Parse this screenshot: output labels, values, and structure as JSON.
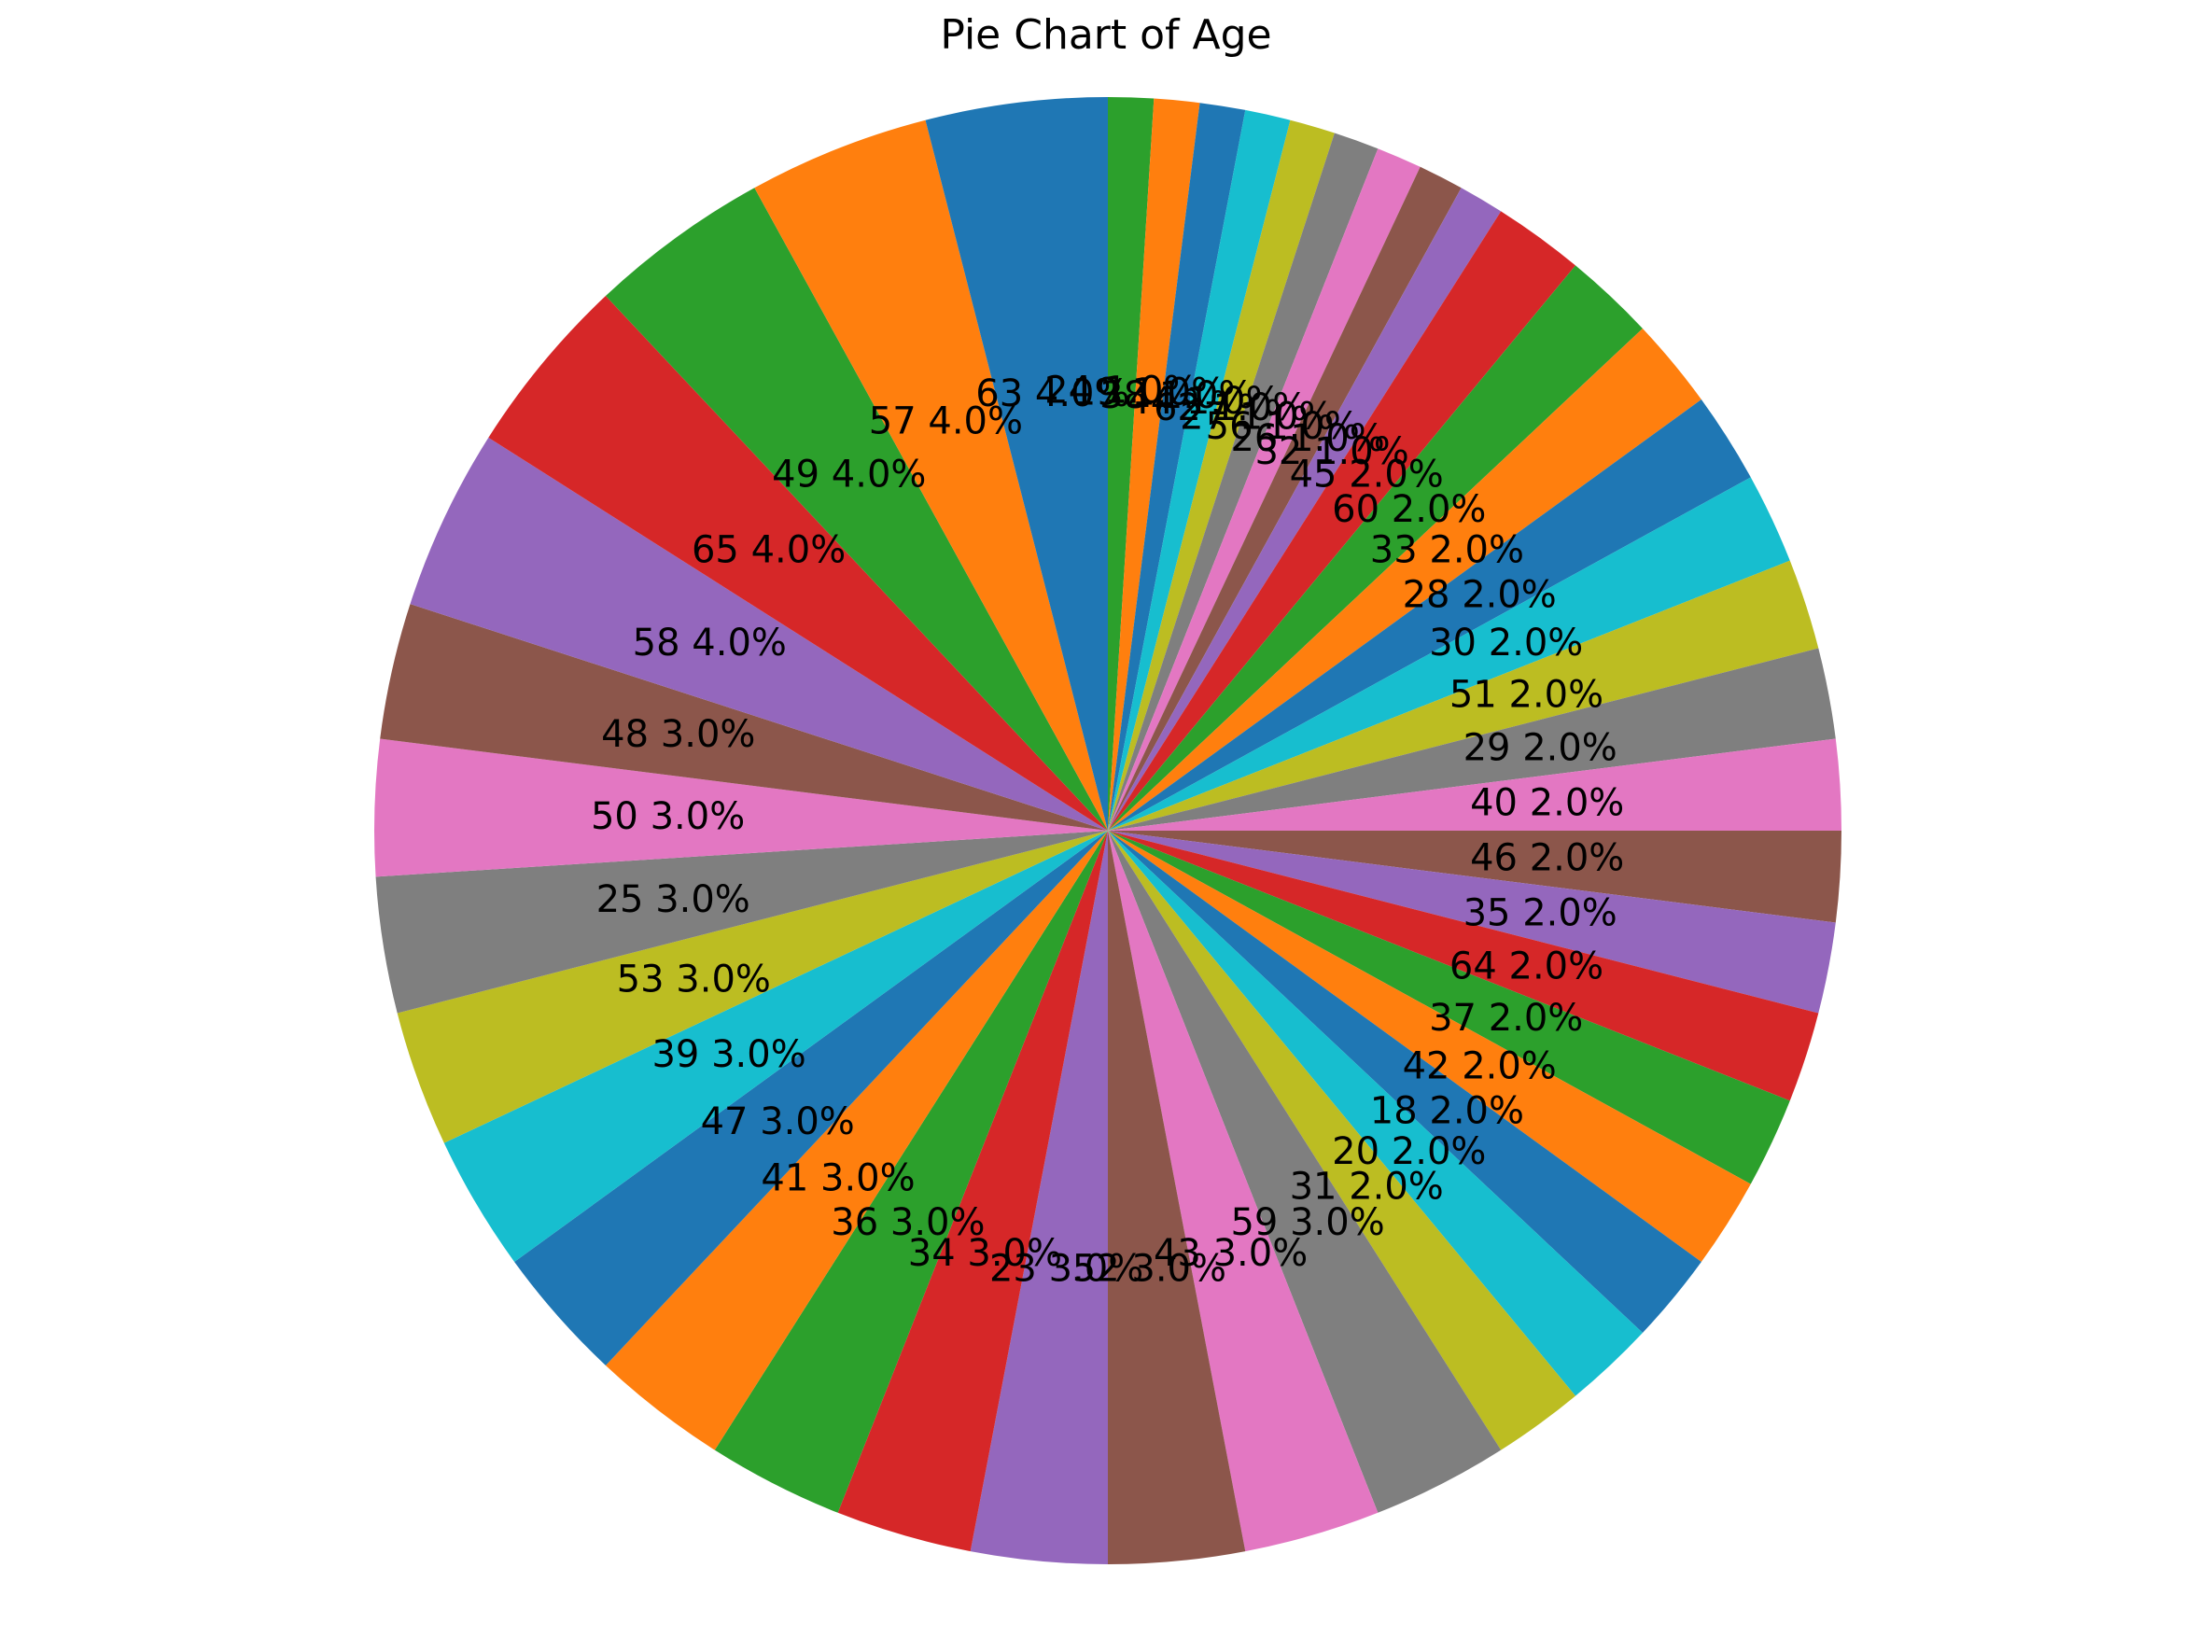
{
  "chart_data": {
    "type": "pie",
    "title": "Pie Chart of Age",
    "start_angle_deg": 90,
    "direction": "clockwise",
    "label_format": "{category} {percent}",
    "slices": [
      {
        "category": "24",
        "value": 1,
        "label": "24 1.0%",
        "color": "#2ca02c"
      },
      {
        "category": "19",
        "value": 1,
        "label": "19 1.0%",
        "color": "#ff7f0e"
      },
      {
        "category": "38",
        "value": 1,
        "label": "38 1.0%",
        "color": "#1f77b4"
      },
      {
        "category": "44",
        "value": 1,
        "label": "44 1.0%",
        "color": "#17becf"
      },
      {
        "category": "62",
        "value": 1,
        "label": "62 1.0%",
        "color": "#bcbd22"
      },
      {
        "category": "27",
        "value": 1,
        "label": "27 1.0%",
        "color": "#7f7f7f"
      },
      {
        "category": "56",
        "value": 1,
        "label": "56 1.0%",
        "color": "#e377c2"
      },
      {
        "category": "26",
        "value": 1,
        "label": "26 1.0%",
        "color": "#8c564b"
      },
      {
        "category": "32",
        "value": 1,
        "label": "32 1.0%",
        "color": "#9467bd"
      },
      {
        "category": "45",
        "value": 2,
        "label": "45 2.0%",
        "color": "#d62728"
      },
      {
        "category": "60",
        "value": 2,
        "label": "60 2.0%",
        "color": "#2ca02c"
      },
      {
        "category": "33",
        "value": 2,
        "label": "33 2.0%",
        "color": "#ff7f0e"
      },
      {
        "category": "28",
        "value": 2,
        "label": "28 2.0%",
        "color": "#1f77b4"
      },
      {
        "category": "30",
        "value": 2,
        "label": "30 2.0%",
        "color": "#17becf"
      },
      {
        "category": "51",
        "value": 2,
        "label": "51 2.0%",
        "color": "#bcbd22"
      },
      {
        "category": "29",
        "value": 2,
        "label": "29 2.0%",
        "color": "#7f7f7f"
      },
      {
        "category": "40",
        "value": 2,
        "label": "40 2.0%",
        "color": "#e377c2"
      },
      {
        "category": "46",
        "value": 2,
        "label": "46 2.0%",
        "color": "#8c564b"
      },
      {
        "category": "35",
        "value": 2,
        "label": "35 2.0%",
        "color": "#9467bd"
      },
      {
        "category": "64",
        "value": 2,
        "label": "64 2.0%",
        "color": "#d62728"
      },
      {
        "category": "37",
        "value": 2,
        "label": "37 2.0%",
        "color": "#2ca02c"
      },
      {
        "category": "42",
        "value": 2,
        "label": "42 2.0%",
        "color": "#ff7f0e"
      },
      {
        "category": "18",
        "value": 2,
        "label": "18 2.0%",
        "color": "#1f77b4"
      },
      {
        "category": "20",
        "value": 2,
        "label": "20 2.0%",
        "color": "#17becf"
      },
      {
        "category": "31",
        "value": 2,
        "label": "31 2.0%",
        "color": "#bcbd22"
      },
      {
        "category": "59",
        "value": 3,
        "label": "59 3.0%",
        "color": "#7f7f7f"
      },
      {
        "category": "43",
        "value": 3,
        "label": "43 3.0%",
        "color": "#e377c2"
      },
      {
        "category": "52",
        "value": 3,
        "label": "52 3.0%",
        "color": "#8c564b"
      },
      {
        "category": "23",
        "value": 3,
        "label": "23 3.0%",
        "color": "#9467bd"
      },
      {
        "category": "34",
        "value": 3,
        "label": "34 3.0%",
        "color": "#d62728"
      },
      {
        "category": "36",
        "value": 3,
        "label": "36 3.0%",
        "color": "#2ca02c"
      },
      {
        "category": "41",
        "value": 3,
        "label": "41 3.0%",
        "color": "#ff7f0e"
      },
      {
        "category": "47",
        "value": 3,
        "label": "47 3.0%",
        "color": "#1f77b4"
      },
      {
        "category": "39",
        "value": 3,
        "label": "39 3.0%",
        "color": "#17becf"
      },
      {
        "category": "53",
        "value": 3,
        "label": "53 3.0%",
        "color": "#bcbd22"
      },
      {
        "category": "25",
        "value": 3,
        "label": "25 3.0%",
        "color": "#7f7f7f"
      },
      {
        "category": "50",
        "value": 3,
        "label": "50 3.0%",
        "color": "#e377c2"
      },
      {
        "category": "48",
        "value": 3,
        "label": "48 3.0%",
        "color": "#8c564b"
      },
      {
        "category": "58",
        "value": 4,
        "label": "58 4.0%",
        "color": "#9467bd"
      },
      {
        "category": "65",
        "value": 4,
        "label": "65 4.0%",
        "color": "#d62728"
      },
      {
        "category": "49",
        "value": 4,
        "label": "49 4.0%",
        "color": "#2ca02c"
      },
      {
        "category": "57",
        "value": 4,
        "label": "57 4.0%",
        "color": "#ff7f0e"
      },
      {
        "category": "63",
        "value": 4,
        "label": "63 4.0%",
        "color": "#1f77b4"
      }
    ]
  }
}
